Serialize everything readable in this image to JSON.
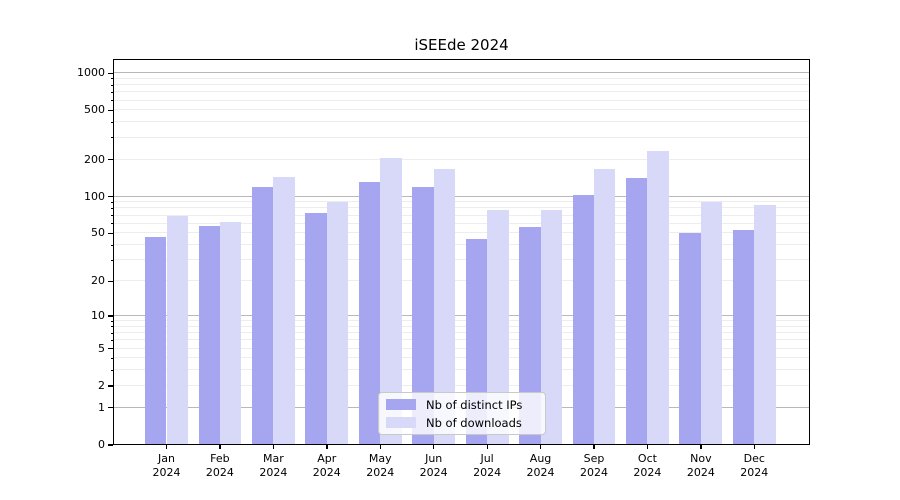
{
  "chart_data": {
    "type": "bar",
    "title": "iSEEde 2024",
    "categories": [
      "Jan",
      "Feb",
      "Mar",
      "Apr",
      "May",
      "Jun",
      "Jul",
      "Aug",
      "Sep",
      "Oct",
      "Nov",
      "Dec"
    ],
    "year_label": "2024",
    "series": [
      {
        "name": "Nb of distinct IPs",
        "color": "#a6a6f0",
        "values": [
          47,
          57,
          120,
          74,
          131,
          119,
          45,
          56,
          103,
          141,
          50,
          53
        ]
      },
      {
        "name": "Nb of downloads",
        "color": "#d8d8f8",
        "values": [
          70,
          62,
          144,
          90,
          207,
          168,
          78,
          77,
          169,
          235,
          90,
          86
        ]
      }
    ],
    "xlabel": "",
    "ylabel": "",
    "y_axis": {
      "scale": "log1p",
      "min": 0,
      "max": 1300,
      "ticks": [
        0,
        1,
        2,
        5,
        10,
        20,
        50,
        100,
        200,
        500,
        1000
      ]
    },
    "grid": "horizontal, major decades dark + minor faint",
    "legend_position": "lower center, inside plot",
    "colors": {
      "major_grid": "#b8b8b8",
      "minor_grid": "#ededed",
      "frame": "#000000",
      "text": "#000000",
      "background": "#ffffff"
    }
  }
}
